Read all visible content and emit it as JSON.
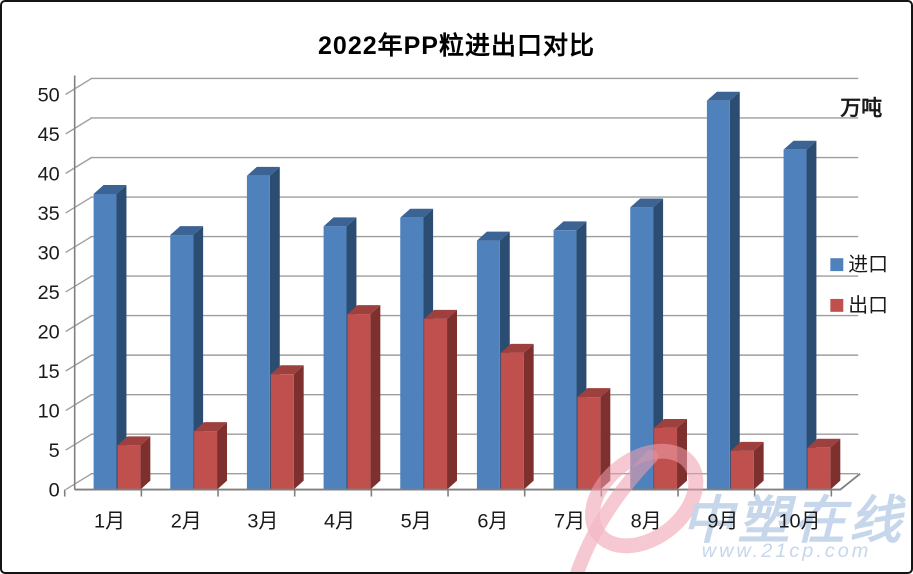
{
  "chart_data": {
    "type": "bar",
    "style": "3d-clustered-column",
    "title": "2022年PP粒进出口对比",
    "unit_label": "万吨",
    "categories": [
      "1月",
      "2月",
      "3月",
      "4月",
      "5月",
      "6月",
      "7月",
      "8月",
      "9月",
      "10月"
    ],
    "series": [
      {
        "name": "进口",
        "color": "#4F81BD",
        "side_color": "#2C4D72",
        "top_color": "#3B6394",
        "values": [
          37.4,
          32.2,
          39.7,
          33.3,
          34.4,
          31.5,
          32.8,
          35.7,
          49.2,
          43.0
        ]
      },
      {
        "name": "出口",
        "color": "#C0504D",
        "side_color": "#7D302E",
        "top_color": "#9D403E",
        "values": [
          5.6,
          7.4,
          14.6,
          22.2,
          21.6,
          17.3,
          11.7,
          7.8,
          4.9,
          5.3
        ]
      }
    ],
    "ylim": [
      0,
      50
    ],
    "yticks": [
      0,
      5,
      10,
      15,
      20,
      25,
      30,
      35,
      40,
      45,
      50
    ],
    "grid": true,
    "legend_position": "right"
  },
  "watermark": {
    "site_name": "中塑在线",
    "site_url": "www.21cp.com"
  },
  "colors": {
    "gridline": "#9e9e9e",
    "axis": "#7f7f7f",
    "label_text": "#1a1a1a",
    "watermark_blue": "#b5cae5",
    "watermark_pink": "#ef9fae",
    "frame_border": "#141414"
  }
}
